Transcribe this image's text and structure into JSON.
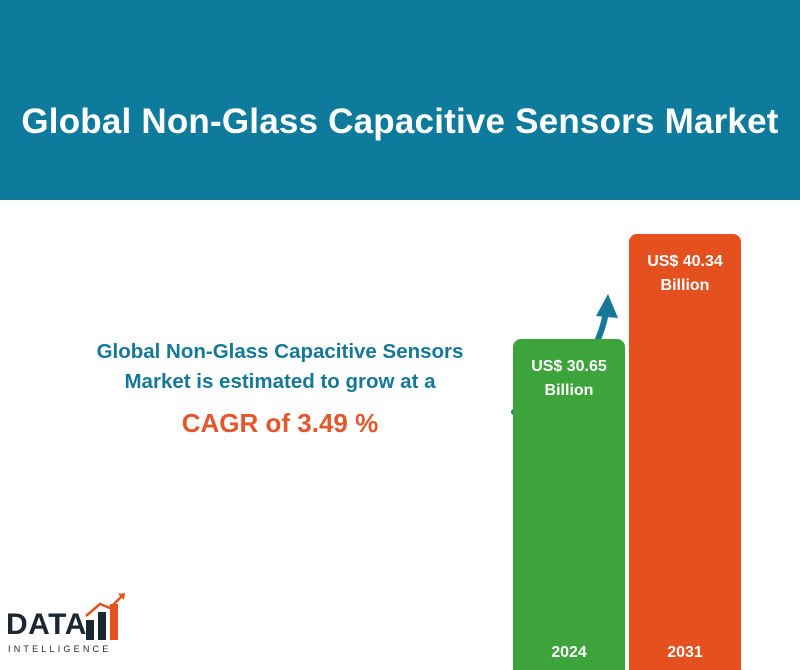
{
  "header": {
    "title": "Global Non-Glass Capacitive Sensors Market"
  },
  "tagline": {
    "line1": "Global Non-Glass Capacitive Sensors",
    "line2": "Market is estimated to grow at a",
    "cagr": "CAGR of 3.49 %"
  },
  "colors": {
    "header_bg": "#0e7a9c",
    "accent_text": "#157898",
    "cagr_text": "#e4572c",
    "bar_2024": "#3da33b",
    "bar_2031": "#e5501f"
  },
  "chart_data": {
    "type": "bar",
    "categories": [
      "2024",
      "2031"
    ],
    "values": [
      30.65,
      40.34
    ],
    "value_labels": [
      "US$  30.65\nBillion",
      "US$  40.34\nBillion"
    ],
    "unit": "US$ Billion",
    "colors": [
      "#3da33b",
      "#e5501f"
    ],
    "grid": false,
    "legend": "none"
  },
  "icons": {
    "growth_arrow": "curved-arrow-up-right-icon"
  },
  "logo": {
    "word": "DATA",
    "subtitle": "INTELLIGENCE"
  }
}
